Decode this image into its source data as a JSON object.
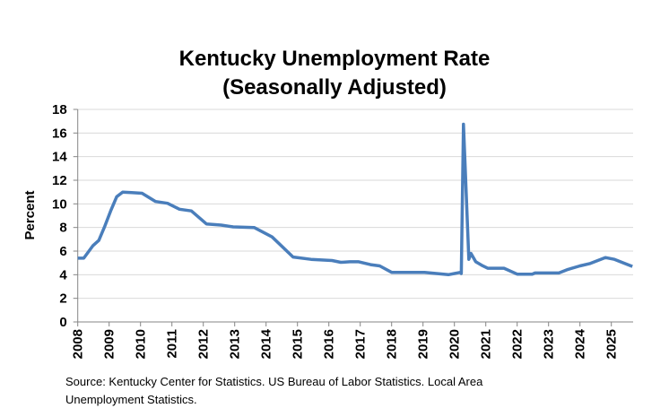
{
  "chart_data": {
    "type": "line",
    "title_line1": "Kentucky Unemployment Rate",
    "title_line2": "(Seasonally Adjusted)",
    "xlabel": "",
    "ylabel": "Percent",
    "ylim": [
      0,
      18
    ],
    "yticks": [
      0,
      2,
      4,
      6,
      8,
      10,
      12,
      14,
      16,
      18
    ],
    "xlim": [
      2008,
      2025.67
    ],
    "xticks": [
      "2008",
      "2009",
      "2010",
      "2011",
      "2012",
      "2013",
      "2014",
      "2015",
      "2016",
      "2017",
      "2018",
      "2019",
      "2020",
      "2021",
      "2022",
      "2023",
      "2024",
      "2025"
    ],
    "grid": true,
    "legend": "none",
    "line_color": "#4a7ebb",
    "series": [
      {
        "name": "Kentucky Unemployment Rate",
        "x": [
          2008.0,
          2008.19,
          2008.48,
          2008.67,
          2008.86,
          2009.05,
          2009.24,
          2009.43,
          2009.71,
          2010.05,
          2010.48,
          2010.86,
          2011.24,
          2011.62,
          2012.1,
          2012.57,
          2012.95,
          2013.62,
          2014.19,
          2014.86,
          2015.43,
          2016.1,
          2016.38,
          2016.67,
          2016.95,
          2017.33,
          2017.62,
          2018.0,
          2019.05,
          2019.81,
          2020.19,
          2020.22,
          2020.29,
          2020.46,
          2020.53,
          2020.68,
          2020.87,
          2021.06,
          2021.58,
          2022.0,
          2022.48,
          2022.57,
          2023.33,
          2023.62,
          2024.0,
          2024.33,
          2024.81,
          2025.1,
          2025.48,
          2025.67
        ],
        "values": [
          5.4,
          5.4,
          6.45,
          6.9,
          8.1,
          9.4,
          10.6,
          11.0,
          10.95,
          10.9,
          10.2,
          10.05,
          9.55,
          9.4,
          8.3,
          8.2,
          8.05,
          8.0,
          7.2,
          5.5,
          5.3,
          5.2,
          5.05,
          5.1,
          5.1,
          4.85,
          4.75,
          4.2,
          4.2,
          4.0,
          4.2,
          4.1,
          16.75,
          5.3,
          5.8,
          5.1,
          4.8,
          4.55,
          4.55,
          4.05,
          4.05,
          4.15,
          4.15,
          4.45,
          4.75,
          4.95,
          5.45,
          5.3,
          4.9,
          4.7
        ]
      }
    ]
  },
  "source_line1": "Source: Kentucky Center for Statistics. US Bureau of Labor Statistics. Local Area",
  "source_line2": "Unemployment Statistics."
}
